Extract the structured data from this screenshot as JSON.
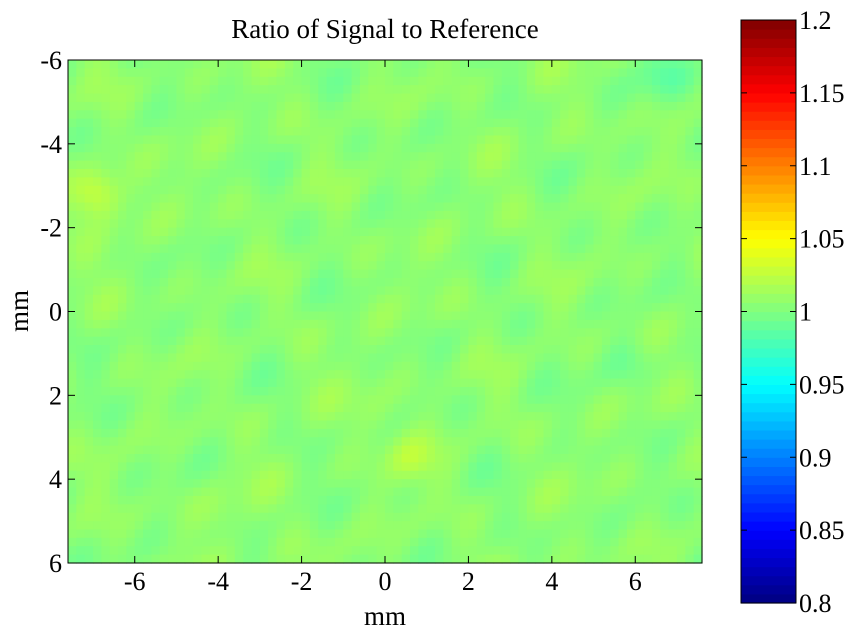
{
  "chart_data": {
    "type": "heatmap",
    "title": "Ratio of Signal to Reference",
    "xlabel": "mm",
    "ylabel": "mm",
    "xlim": [
      -7.6,
      7.6
    ],
    "ylim": [
      -6,
      6
    ],
    "y_reversed": true,
    "xticks": [
      -6,
      -4,
      -2,
      0,
      2,
      4,
      6
    ],
    "xtick_labels": [
      "-6",
      "-4",
      "-2",
      "0",
      "2",
      "4",
      "6"
    ],
    "yticks": [
      -6,
      -4,
      -2,
      0,
      2,
      4,
      6
    ],
    "ytick_labels": [
      "-6",
      "-4",
      "-2",
      "0",
      "2",
      "4",
      "6"
    ],
    "colormap": "jet",
    "clim": [
      0.8,
      1.2
    ],
    "colorbar_ticks": [
      0.8,
      0.85,
      0.9,
      0.95,
      1,
      1.05,
      1.1,
      1.15,
      1.2
    ],
    "colorbar_labels": [
      "0.8",
      "0.85",
      "0.9",
      "0.95",
      "1",
      "1.05",
      "1.1",
      "1.15",
      "1.2"
    ],
    "base_value": 1.005,
    "features": [
      {
        "x": -6.9,
        "y": -2.8,
        "value": 1.035
      },
      {
        "x": 0.6,
        "y": 3.5,
        "value": 1.02
      },
      {
        "x": -0.3,
        "y": 2.4,
        "value": 1.012
      },
      {
        "x": -4.0,
        "y": 4.8,
        "value": 1.012
      },
      {
        "x": 6.7,
        "y": -5.6,
        "value": 0.99
      },
      {
        "x": 5.8,
        "y": 1.2,
        "value": 0.996
      }
    ],
    "grid": false,
    "legend": "none"
  }
}
